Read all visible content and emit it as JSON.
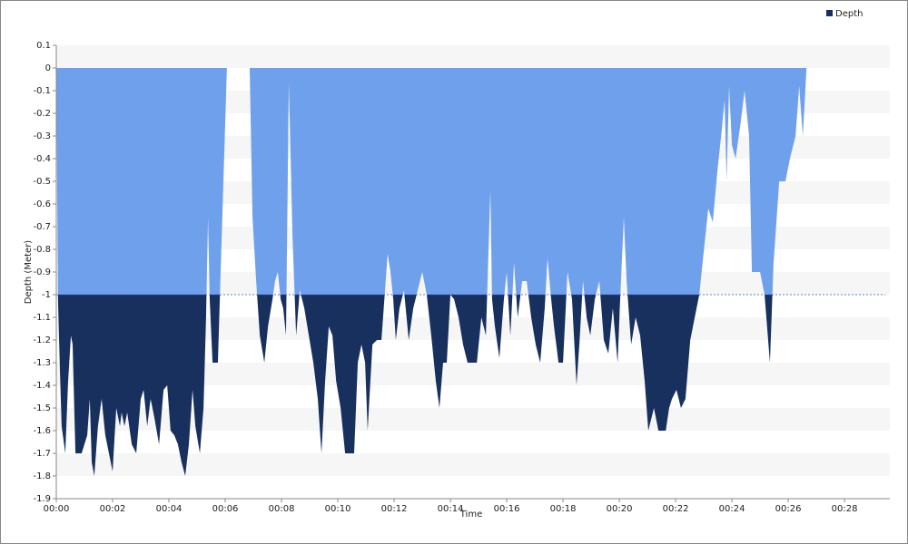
{
  "chart_data": {
    "type": "area",
    "x_label": "Time",
    "y_label": "Depth (Meter)",
    "x": [
      0,
      0.06,
      0.13,
      0.19,
      0.32,
      0.42,
      0.52,
      0.58,
      0.68,
      0.9,
      1.1,
      1.19,
      1.26,
      1.35,
      1.48,
      1.61,
      1.74,
      1.87,
      2.0,
      2.13,
      2.26,
      2.32,
      2.42,
      2.52,
      2.68,
      2.84,
      3.0,
      3.1,
      3.23,
      3.35,
      3.48,
      3.65,
      3.81,
      3.94,
      4.06,
      4.19,
      4.32,
      4.45,
      4.58,
      4.71,
      4.84,
      4.94,
      5.1,
      5.23,
      5.32,
      5.39,
      5.45,
      5.55,
      5.74,
      6.06,
      6.87,
      6.97,
      7.1,
      7.23,
      7.39,
      7.52,
      7.68,
      7.77,
      7.87,
      7.97,
      8.06,
      8.16,
      8.26,
      8.39,
      8.52,
      8.65,
      8.81,
      8.97,
      9.13,
      9.29,
      9.42,
      9.55,
      9.68,
      9.81,
      9.94,
      10.1,
      10.26,
      10.58,
      10.71,
      10.84,
      10.97,
      11.06,
      11.23,
      11.39,
      11.55,
      11.77,
      11.87,
      11.97,
      12.06,
      12.19,
      12.35,
      12.52,
      12.68,
      12.84,
      13.0,
      13.16,
      13.32,
      13.48,
      13.61,
      13.74,
      13.87,
      14.0,
      14.13,
      14.29,
      14.45,
      14.61,
      14.94,
      15.1,
      15.26,
      15.42,
      15.48,
      15.58,
      15.74,
      15.9,
      16.0,
      16.13,
      16.26,
      16.39,
      16.55,
      16.71,
      16.87,
      17.03,
      17.19,
      17.35,
      17.45,
      17.58,
      17.68,
      17.84,
      18.0,
      18.16,
      18.32,
      18.48,
      18.58,
      18.71,
      18.84,
      18.97,
      19.13,
      19.29,
      19.45,
      19.61,
      19.77,
      19.94,
      20.03,
      20.16,
      20.26,
      20.42,
      20.58,
      20.74,
      20.9,
      21.03,
      21.23,
      21.39,
      21.65,
      21.77,
      21.87,
      22.03,
      22.19,
      22.35,
      22.52,
      22.68,
      22.84,
      23.16,
      23.32,
      23.48,
      23.65,
      23.74,
      23.81,
      23.9,
      24.0,
      24.13,
      24.29,
      24.45,
      24.61,
      24.71,
      25.0,
      25.16,
      25.35,
      25.48,
      25.68,
      25.9,
      26.06,
      26.26,
      26.39,
      26.52,
      26.65
    ],
    "series": [
      {
        "name": "Depth",
        "color": "#17305e",
        "color_above_threshold": "#6fa0ec",
        "values": [
          0,
          -1.02,
          -1.34,
          -1.58,
          -1.7,
          -1.38,
          -1.18,
          -1.22,
          -1.7,
          -1.7,
          -1.62,
          -1.46,
          -1.74,
          -1.8,
          -1.58,
          -1.46,
          -1.62,
          -1.7,
          -1.78,
          -1.5,
          -1.58,
          -1.52,
          -1.58,
          -1.52,
          -1.66,
          -1.7,
          -1.46,
          -1.42,
          -1.58,
          -1.46,
          -1.54,
          -1.66,
          -1.42,
          -1.4,
          -1.6,
          -1.62,
          -1.66,
          -1.74,
          -1.8,
          -1.66,
          -1.42,
          -1.58,
          -1.7,
          -1.5,
          -1.1,
          -0.66,
          -1.02,
          -1.3,
          -1.3,
          0,
          0,
          -0.66,
          -0.94,
          -1.18,
          -1.3,
          -1.14,
          -1.02,
          -0.94,
          -0.9,
          -1.02,
          -1.06,
          -1.18,
          -0.06,
          -0.74,
          -1.18,
          -0.98,
          -1.06,
          -1.18,
          -1.3,
          -1.46,
          -1.7,
          -1.38,
          -1.14,
          -1.18,
          -1.38,
          -1.5,
          -1.7,
          -1.7,
          -1.3,
          -1.22,
          -1.3,
          -1.6,
          -1.22,
          -1.2,
          -1.2,
          -0.82,
          -0.9,
          -1.02,
          -1.2,
          -1.06,
          -0.98,
          -1.2,
          -1.06,
          -0.98,
          -0.9,
          -1.0,
          -1.18,
          -1.38,
          -1.5,
          -1.3,
          -1.3,
          -1.0,
          -1.02,
          -1.1,
          -1.22,
          -1.3,
          -1.3,
          -1.1,
          -1.18,
          -0.54,
          -1.02,
          -1.14,
          -1.28,
          -1.02,
          -0.9,
          -1.18,
          -0.86,
          -1.1,
          -0.94,
          -0.94,
          -1.1,
          -1.22,
          -1.3,
          -1.06,
          -0.84,
          -1.02,
          -1.14,
          -1.3,
          -1.3,
          -0.9,
          -1.02,
          -1.4,
          -1.22,
          -0.94,
          -1.1,
          -1.18,
          -1.02,
          -0.94,
          -1.2,
          -1.26,
          -1.06,
          -1.3,
          -1.02,
          -0.66,
          -0.94,
          -1.22,
          -1.1,
          -1.18,
          -1.38,
          -1.6,
          -1.5,
          -1.6,
          -1.6,
          -1.5,
          -1.46,
          -1.42,
          -1.5,
          -1.46,
          -1.2,
          -1.1,
          -1.0,
          -0.62,
          -0.68,
          -0.46,
          -0.26,
          -0.14,
          -0.5,
          -0.08,
          -0.34,
          -0.4,
          -0.26,
          -0.1,
          -0.3,
          -0.9,
          -0.9,
          -1.0,
          -1.3,
          -0.86,
          -0.5,
          -0.5,
          -0.4,
          -0.3,
          -0.08,
          -0.3,
          0
        ]
      }
    ],
    "threshold": -1,
    "threshold_color": "#3355cc",
    "xlim": [
      0,
      29.61
    ],
    "xticks": [
      {
        "value": 0,
        "label": "00:00"
      },
      {
        "value": 2,
        "label": "00:02"
      },
      {
        "value": 4,
        "label": "00:04"
      },
      {
        "value": 6,
        "label": "00:06"
      },
      {
        "value": 8,
        "label": "00:08"
      },
      {
        "value": 10,
        "label": "00:10"
      },
      {
        "value": 12,
        "label": "00:12"
      },
      {
        "value": 14,
        "label": "00:14"
      },
      {
        "value": 16,
        "label": "00:16"
      },
      {
        "value": 18,
        "label": "00:18"
      },
      {
        "value": 20,
        "label": "00:20"
      },
      {
        "value": 22,
        "label": "00:22"
      },
      {
        "value": 24,
        "label": "00:24"
      },
      {
        "value": 26,
        "label": "00:26"
      },
      {
        "value": 28,
        "label": "00:28"
      }
    ],
    "ylim": [
      -1.9,
      0.1
    ],
    "yticks": [
      0.1,
      0,
      -0.1,
      -0.2,
      -0.3,
      -0.4,
      -0.5,
      -0.6,
      -0.7,
      -0.8,
      -0.9,
      -1,
      -1.1,
      -1.2,
      -1.3,
      -1.4,
      -1.5,
      -1.6,
      -1.7,
      -1.8,
      -1.9
    ],
    "grid": "bands",
    "legend": "top-right"
  }
}
